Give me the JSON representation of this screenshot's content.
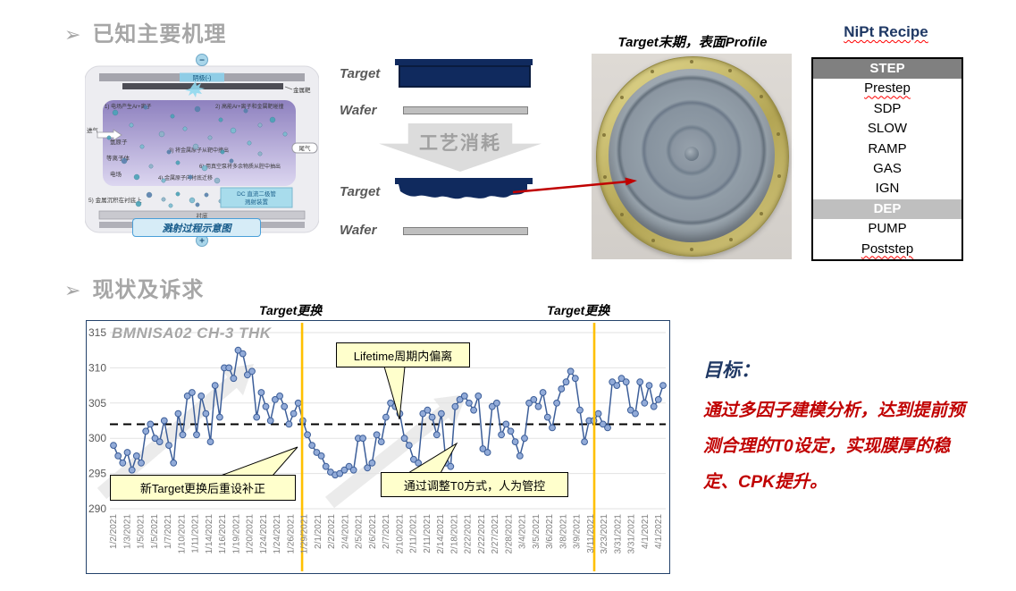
{
  "slide": {
    "bullet_glyph": "➢",
    "section1_heading": "已知主要机理",
    "section2_heading": "现状及诉求"
  },
  "mechanism_diagram": {
    "cathode_label": "阴极(-)",
    "metal_target_label": "金属靶",
    "gas_in_label": "进气",
    "gas_out_label": "尾气",
    "argon_label": "氩原子",
    "plasma_label": "等离子体",
    "efield_label": "电场",
    "step1": "1) 电场产生Ar+离子",
    "step2": "2) 高能Ar+离子和金属靶碰撞",
    "step3": "3) 将金属原子从靶中撞出",
    "step4": "4) 金属原子向衬底迁移",
    "step5": "5) 金属沉积在衬底上",
    "step6": "6) 用真空泵将多余物质从腔中抽出",
    "dc_box_line1": "DC 直流二极管",
    "dc_box_line2": "溅射装置",
    "substrate_label": "衬底",
    "anode_label": "阳极(+)",
    "minus_sign": "−",
    "plus_sign": "+",
    "caption": "溅射过程示意图"
  },
  "consume_diagram": {
    "target_label": "Target",
    "wafer_label": "Wafer",
    "arrow_label": "工艺消耗",
    "target_label_2": "Target",
    "wafer_label_2": "Wafer"
  },
  "photo": {
    "title": "Target末期，表面Profile"
  },
  "recipe": {
    "title": "NiPt Recipe",
    "header": "STEP",
    "steps": [
      "Prestep",
      "SDP",
      "SLOW",
      "RAMP",
      "GAS",
      "IGN",
      "DEP",
      "PUMP",
      "Poststep"
    ],
    "subheader_step": "DEP",
    "misspell_underlined": [
      "Prestep",
      "Poststep"
    ]
  },
  "goal": {
    "title": "目标：",
    "body": "通过多因子建模分析，达到提前预测合理的T0设定，实现膜厚的稳定、CPK提升。"
  },
  "chart_data": {
    "type": "line",
    "title": "BMNISA02 CH-3 THK",
    "xlabel": "",
    "ylabel": "",
    "ylim": [
      290,
      315
    ],
    "yticks": [
      315,
      310,
      305,
      300,
      295,
      290
    ],
    "reference_line": 302,
    "grid": true,
    "legend": "none",
    "x_labels": [
      "1/2/2021",
      "1/3/2021",
      "1/5/2021",
      "1/5/2021",
      "1/7/2021",
      "1/10/2021",
      "1/11/2021",
      "1/14/2021",
      "1/16/2021",
      "1/19/2021",
      "1/20/2021",
      "1/24/2021",
      "1/24/2021",
      "1/26/2021",
      "1/29/2021",
      "2/1/2021",
      "2/2/2021",
      "2/4/2021",
      "2/5/2021",
      "2/6/2021",
      "2/7/2021",
      "2/10/2021",
      "2/11/2021",
      "2/11/2021",
      "2/14/2021",
      "2/18/2021",
      "2/22/2021",
      "2/22/2021",
      "2/27/2021",
      "2/28/2021",
      "3/4/2021",
      "3/5/2021",
      "3/6/2021",
      "3/8/2021",
      "3/9/2021",
      "3/11/2021",
      "3/23/2021",
      "3/31/2021",
      "3/31/2021",
      "4/1/2021",
      "4/1/2021"
    ],
    "points": [
      299,
      297.5,
      296.5,
      298,
      295.5,
      297.5,
      296.5,
      301,
      302,
      300,
      299.5,
      302.5,
      299,
      296.5,
      303.5,
      300.5,
      306,
      306.5,
      300.5,
      306,
      303.5,
      299.5,
      307.5,
      303,
      310,
      310,
      308.5,
      312.5,
      312,
      309,
      309.5,
      303,
      306.5,
      304.5,
      302.5,
      305.5,
      306,
      304.5,
      302,
      303.5,
      305,
      302.5,
      300.5,
      299,
      298,
      297.5,
      296,
      295.2,
      294.8,
      295,
      295.5,
      296,
      295.5,
      300,
      300,
      295.8,
      296.5,
      300.5,
      299.5,
      303,
      305,
      304.5,
      303.5,
      300,
      299,
      297,
      296.5,
      303.5,
      304,
      303,
      300.5,
      303.5,
      296.5,
      296,
      304.5,
      305.5,
      306,
      305,
      304,
      306,
      298.5,
      298,
      304.5,
      305,
      300.5,
      302,
      301,
      299.5,
      297.5,
      300,
      305,
      305.5,
      304.5,
      306.5,
      303,
      301.5,
      305,
      307,
      308,
      309.5,
      308.5,
      304,
      299.5,
      302.5,
      302.5,
      303.5,
      302,
      301.5,
      308,
      307.5,
      308.5,
      308,
      304,
      303.5,
      308,
      305,
      307.5,
      304.5,
      305.5,
      307.5
    ],
    "event_lines": [
      {
        "label": "Target更换",
        "x_index": 13.84,
        "between": [
          "1/26/2021",
          "1/29/2021"
        ]
      },
      {
        "label": "Target更换",
        "x_index": 35.28,
        "between": [
          "3/11/2021",
          "3/23/2021"
        ]
      }
    ],
    "annotations": [
      {
        "text": "Lifetime周期内偏离"
      },
      {
        "text": "新Target更换后重设补正"
      },
      {
        "text": "通过调整T0方式，人为管控"
      }
    ],
    "trend_arrows": 2,
    "colors": {
      "line": "#3c5e99",
      "point_fill": "#92abd8",
      "event_line": "#ffc000",
      "reference": "#000000",
      "callout_bg": "#ffffcc",
      "grid": "#e2e2e2",
      "frame": "#24426b",
      "title": "#a6a6a6",
      "navy": "#102a5e",
      "goal_red": "#c00000"
    }
  }
}
